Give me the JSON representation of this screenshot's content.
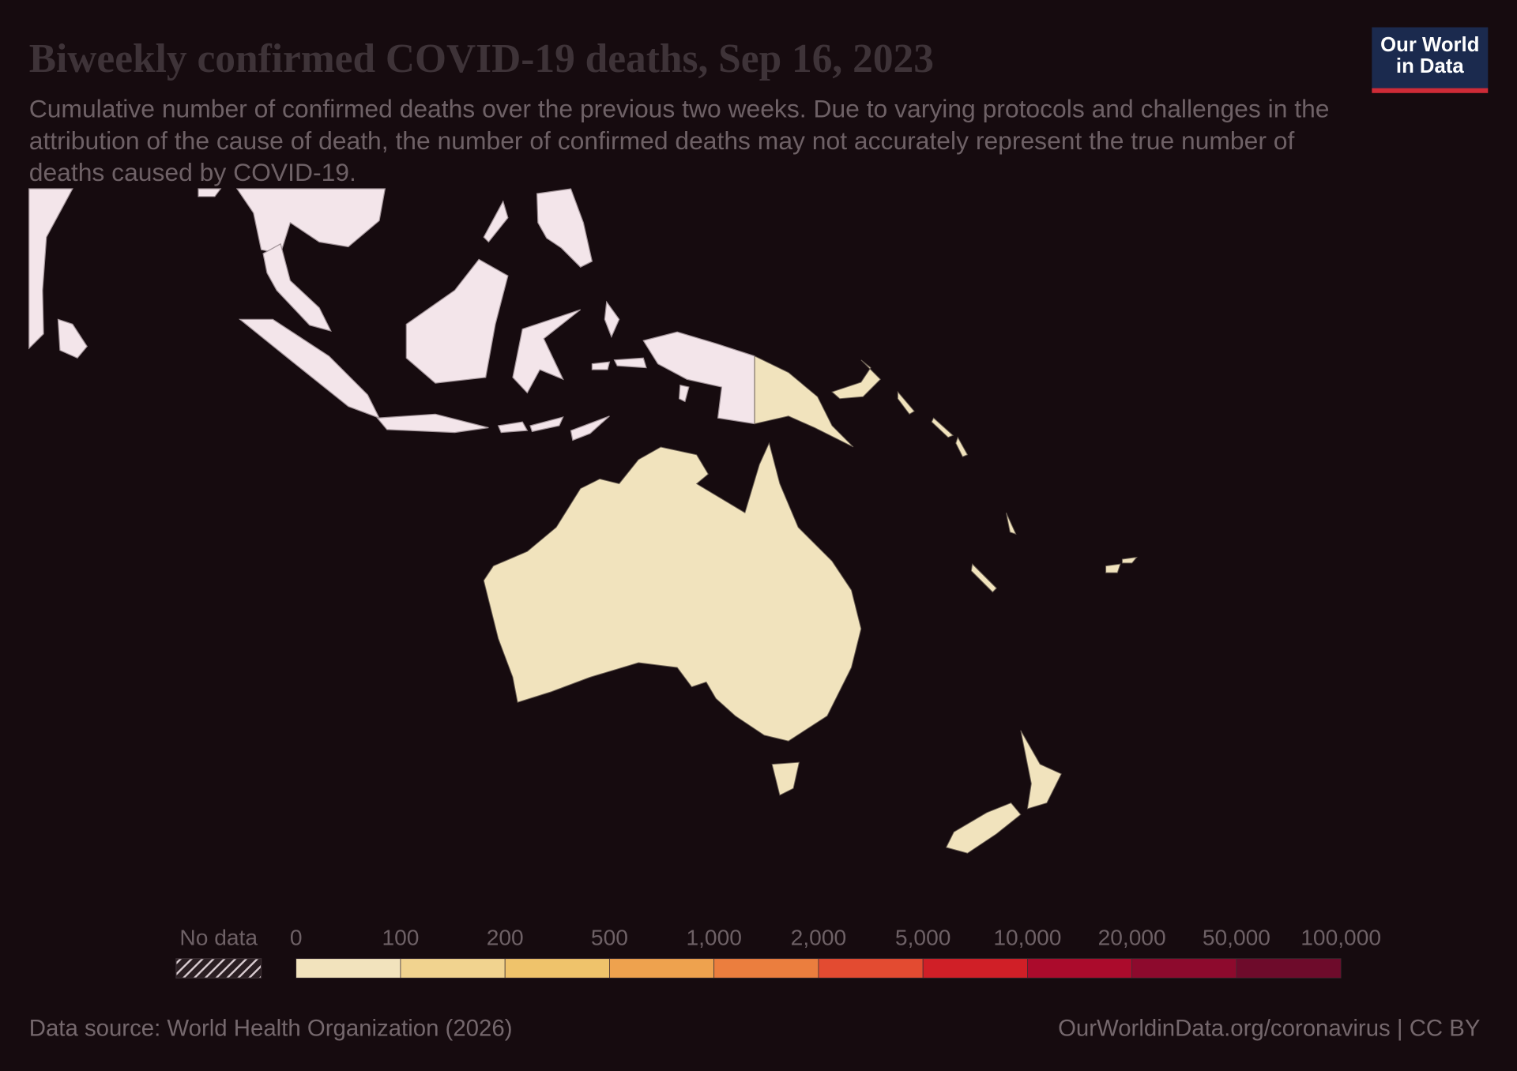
{
  "header": {
    "title": "Biweekly confirmed COVID-19 deaths, Sep 16, 2023",
    "subtitle": "Cumulative number of confirmed deaths over the previous two weeks. Due to varying protocols and challenges in the attribution of the cause of death, the number of confirmed deaths may not accurately represent the true number of deaths caused by COVID-19."
  },
  "logo": {
    "lines": [
      "Our World",
      "in Data"
    ]
  },
  "legend": {
    "no_data_label": "No data",
    "bins": [
      0,
      100,
      200,
      500,
      {
        "value": 1000,
        "label": "1,000"
      },
      {
        "value": 2000,
        "label": "2,000"
      },
      {
        "value": 5000,
        "label": "5,000"
      },
      {
        "value": 10000,
        "label": "10,000"
      },
      {
        "value": 20000,
        "label": "20,000"
      },
      {
        "value": 50000,
        "label": "50,000"
      },
      {
        "value": 100000,
        "label": "100,000"
      }
    ],
    "colors": [
      "#f2e3bd",
      "#f1d38f",
      "#efc36b",
      "#eea24e",
      "#eb7e3e",
      "#e34b31",
      "#d01f27",
      "#ab0b2c",
      "#8d0a2d",
      "#6e0b2b"
    ]
  },
  "footer": {
    "source": "Data source: World Health Organization (2026)",
    "url": "OurWorldinData.org/coronavirus | CC BY"
  }
}
